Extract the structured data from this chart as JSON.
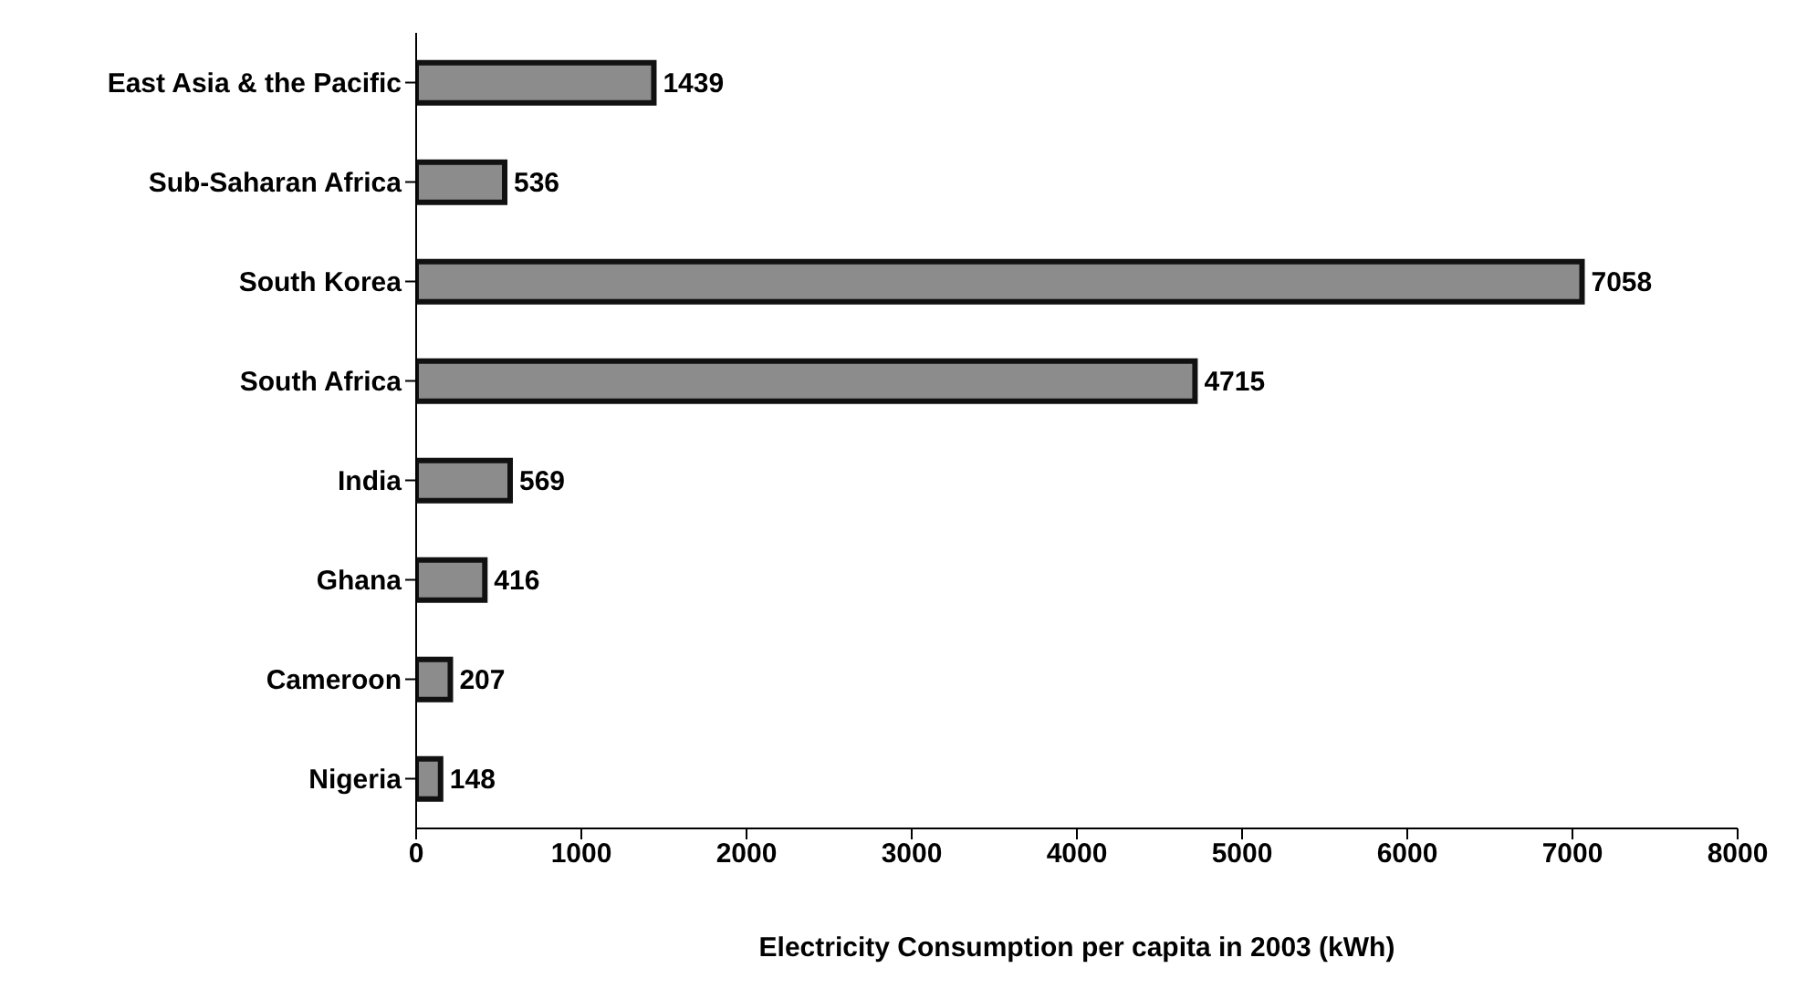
{
  "chart_data": {
    "type": "bar",
    "orientation": "horizontal",
    "xlabel": "Electricity Consumption per capita in 2003 (kWh)",
    "categories": [
      "East Asia & the Pacific",
      "Sub-Saharan Africa",
      "South Korea",
      "South Africa",
      "India",
      "Ghana",
      "Cameroon",
      "Nigeria"
    ],
    "values": [
      1439,
      536,
      7058,
      4715,
      569,
      416,
      207,
      148
    ],
    "color": "#8c8c8c",
    "xlim": [
      0,
      8000
    ],
    "xticks": [
      0,
      1000,
      2000,
      3000,
      4000,
      5000,
      6000,
      7000,
      8000
    ],
    "data_labels": true
  }
}
